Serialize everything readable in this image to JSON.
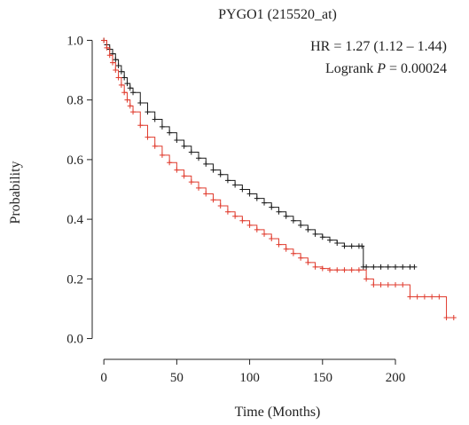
{
  "chart_data": {
    "type": "line",
    "title": "PYGO1 (215520_at)",
    "xlabel": "Time (Months)",
    "ylabel": "Probability",
    "xlim": [
      -8,
      245
    ],
    "ylim": [
      -0.04,
      1.04
    ],
    "xticks": [
      0,
      50,
      100,
      150,
      200
    ],
    "yticks": [
      0.0,
      0.2,
      0.4,
      0.6,
      0.8,
      1.0
    ],
    "x_tick_labels": [
      "0",
      "50",
      "100",
      "150",
      "200"
    ],
    "y_tick_labels": [
      "0.0",
      "0.2",
      "0.4",
      "0.6",
      "0.8",
      "1.0"
    ],
    "grid": false,
    "annotations": {
      "hr": "HR = 1.27 (1.12 – 1.44)",
      "logrank_prefix": "Logrank ",
      "logrank_p": "P",
      "logrank_value": " = 0.00024"
    },
    "series": [
      {
        "color": "#1a1a1a",
        "x": [
          0,
          2,
          4,
          6,
          8,
          10,
          12,
          14,
          16,
          18,
          20,
          25,
          30,
          35,
          40,
          45,
          50,
          55,
          60,
          65,
          70,
          75,
          80,
          85,
          90,
          95,
          100,
          105,
          110,
          115,
          120,
          125,
          130,
          135,
          140,
          145,
          150,
          155,
          160,
          165,
          170,
          175,
          177,
          178,
          180,
          185,
          190,
          195,
          200,
          205,
          210,
          213
        ],
        "y": [
          1.0,
          0.985,
          0.97,
          0.955,
          0.935,
          0.915,
          0.895,
          0.875,
          0.855,
          0.84,
          0.825,
          0.79,
          0.76,
          0.735,
          0.71,
          0.69,
          0.665,
          0.645,
          0.625,
          0.605,
          0.585,
          0.565,
          0.55,
          0.53,
          0.515,
          0.5,
          0.485,
          0.47,
          0.455,
          0.44,
          0.425,
          0.41,
          0.395,
          0.38,
          0.365,
          0.35,
          0.34,
          0.33,
          0.32,
          0.31,
          0.31,
          0.31,
          0.31,
          0.24,
          0.24,
          0.24,
          0.24,
          0.24,
          0.24,
          0.24,
          0.24,
          0.24
        ]
      },
      {
        "color": "#e03a2c",
        "x": [
          0,
          2,
          4,
          6,
          8,
          10,
          12,
          14,
          16,
          18,
          20,
          25,
          30,
          35,
          40,
          45,
          50,
          55,
          60,
          65,
          70,
          75,
          80,
          85,
          90,
          95,
          100,
          105,
          110,
          115,
          120,
          125,
          130,
          135,
          140,
          145,
          150,
          155,
          160,
          165,
          170,
          175,
          180,
          185,
          190,
          195,
          200,
          205,
          210,
          215,
          220,
          225,
          230,
          235,
          240
        ],
        "y": [
          1.0,
          0.975,
          0.95,
          0.925,
          0.9,
          0.875,
          0.85,
          0.825,
          0.8,
          0.78,
          0.76,
          0.715,
          0.675,
          0.645,
          0.615,
          0.59,
          0.565,
          0.545,
          0.525,
          0.505,
          0.485,
          0.465,
          0.445,
          0.425,
          0.41,
          0.395,
          0.38,
          0.365,
          0.35,
          0.335,
          0.315,
          0.3,
          0.285,
          0.27,
          0.255,
          0.24,
          0.235,
          0.23,
          0.23,
          0.23,
          0.23,
          0.23,
          0.2,
          0.18,
          0.18,
          0.18,
          0.18,
          0.18,
          0.14,
          0.14,
          0.14,
          0.14,
          0.14,
          0.07,
          0.07
        ]
      }
    ]
  }
}
